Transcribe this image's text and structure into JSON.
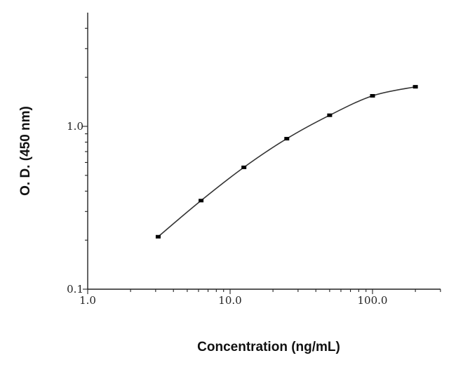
{
  "chart_data": {
    "type": "scatter",
    "title": "",
    "xlabel": "Concentration (ng/mL)",
    "ylabel": "O. D. (450 nm)",
    "xscale": "log",
    "yscale": "log",
    "xlim": [
      1.0,
      300.0
    ],
    "ylim": [
      0.1,
      4.3
    ],
    "x_ticks": [
      {
        "value": 1.0,
        "label": "1.0"
      },
      {
        "value": 10.0,
        "label": "10.0"
      },
      {
        "value": 100.0,
        "label": "100.0"
      }
    ],
    "y_ticks": [
      {
        "value": 0.1,
        "label": "0.1"
      },
      {
        "value": 1.0,
        "label": "1.0"
      }
    ],
    "grid": false,
    "legend": "none",
    "series": [
      {
        "points": [
          {
            "x": 3.125,
            "y": 0.21
          },
          {
            "x": 6.25,
            "y": 0.35
          },
          {
            "x": 12.5,
            "y": 0.56
          },
          {
            "x": 25.0,
            "y": 0.84
          },
          {
            "x": 50.0,
            "y": 1.17
          },
          {
            "x": 100.0,
            "y": 1.54
          },
          {
            "x": 200.0,
            "y": 1.75
          }
        ],
        "fit_curve": true
      }
    ]
  }
}
